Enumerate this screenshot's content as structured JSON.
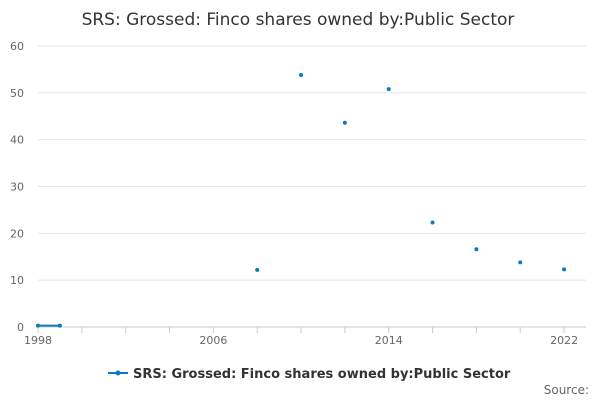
{
  "chart_data": {
    "type": "line",
    "title": "SRS: Grossed: Finco shares owned by:Public Sector",
    "xlabel": "",
    "ylabel": "",
    "xlim": [
      1998,
      2023
    ],
    "ylim": [
      0,
      60
    ],
    "x_ticks": [
      "1998",
      "2006",
      "2014",
      "2022"
    ],
    "y_ticks": [
      "0",
      "10",
      "20",
      "30",
      "40",
      "50",
      "60"
    ],
    "grid": true,
    "legend": "bottom-center",
    "series": [
      {
        "name": "SRS: Grossed: Finco shares owned by:Public Sector",
        "color": "#0b7bc1",
        "points": [
          {
            "x": 1998,
            "y": 0.3
          },
          {
            "x": 1999,
            "y": 0.3
          },
          {
            "x": 2008,
            "y": 12.2
          },
          {
            "x": 2010,
            "y": 53.8
          },
          {
            "x": 2012,
            "y": 43.6
          },
          {
            "x": 2014,
            "y": 50.8
          },
          {
            "x": 2016,
            "y": 22.3
          },
          {
            "x": 2018,
            "y": 16.6
          },
          {
            "x": 2020,
            "y": 13.8
          },
          {
            "x": 2022,
            "y": 12.3
          }
        ]
      }
    ],
    "source_label": "Source:"
  }
}
